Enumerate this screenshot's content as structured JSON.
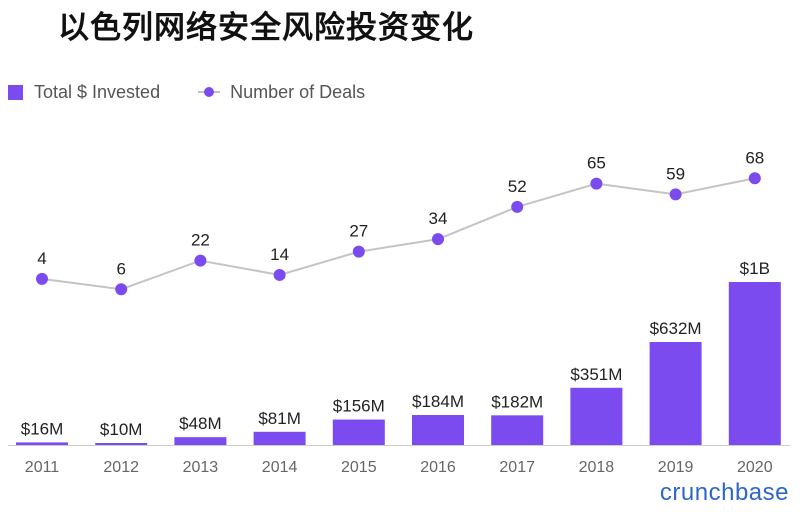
{
  "title": "以色列网络安全风险投资变化",
  "legend": {
    "invested_label": "Total $ Invested",
    "deals_label": "Number of Deals"
  },
  "brand": "crunchbase",
  "colors": {
    "bar": "#7b4bf0",
    "point": "#7b4bf0",
    "line": "#c4c4c4",
    "baseline": "#cccccc"
  },
  "chart_data": {
    "type": "bar",
    "categories": [
      "2011",
      "2012",
      "2013",
      "2014",
      "2015",
      "2016",
      "2017",
      "2018",
      "2019",
      "2020"
    ],
    "series": [
      {
        "name": "Total $ Invested",
        "type": "bar",
        "values": [
          16,
          10,
          48,
          81,
          156,
          184,
          182,
          351,
          632,
          1000
        ],
        "labels": [
          "$16M",
          "$10M",
          "$48M",
          "$81M",
          "$156M",
          "$184M",
          "$182M",
          "$351M",
          "$632M",
          "$1B"
        ]
      },
      {
        "name": "Number of Deals",
        "type": "line",
        "values": [
          4,
          6,
          22,
          14,
          27,
          34,
          52,
          65,
          59,
          68
        ]
      }
    ]
  }
}
